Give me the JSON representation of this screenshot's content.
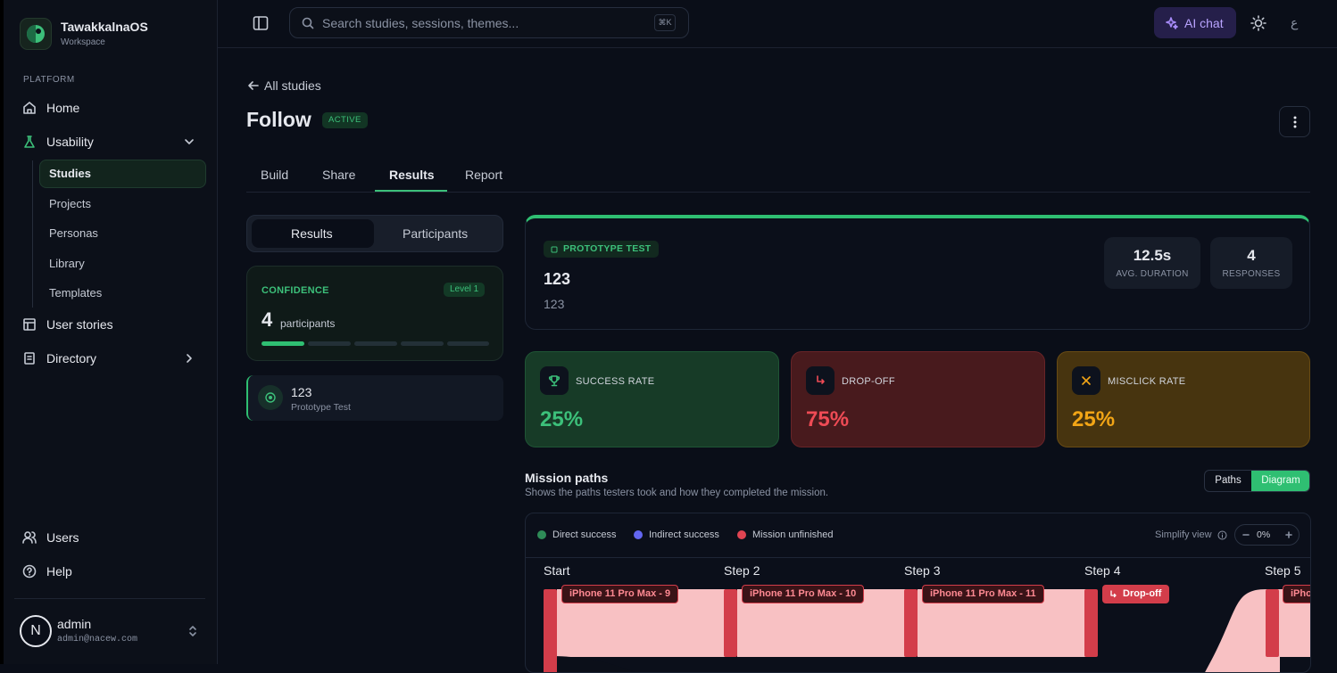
{
  "sidebar": {
    "brand": "TawakkalnaOS",
    "workspace": "Workspace",
    "section": "PLATFORM",
    "nav": [
      "Home",
      "Usability",
      "User stories",
      "Directory"
    ],
    "subnav": [
      "Studies",
      "Projects",
      "Personas",
      "Library",
      "Templates"
    ],
    "footer_nav": [
      "Users",
      "Help"
    ],
    "user": {
      "avatar": "N",
      "name": "admin",
      "email": "admin@nacew.com"
    }
  },
  "topbar": {
    "search_placeholder": "Search studies, sessions, themes...",
    "shortcut": "⌘K",
    "ai_chat": "AI chat",
    "language": "ع"
  },
  "page": {
    "back": "All studies",
    "title": "Follow",
    "status": "ACTIVE",
    "tabs": [
      "Build",
      "Share",
      "Results",
      "Report"
    ]
  },
  "left_panel": {
    "toggle": [
      "Results",
      "Participants"
    ],
    "confidence": {
      "label": "CONFIDENCE",
      "level": "Level 1",
      "count": 4,
      "unit": "participants"
    },
    "task": {
      "name": "123",
      "type": "Prototype Test"
    }
  },
  "summary": {
    "badge": "PROTOTYPE TEST",
    "title": "123",
    "description": "123",
    "stats": [
      {
        "value": "12.5s",
        "label": "AVG. DURATION"
      },
      {
        "value": "4",
        "label": "RESPONSES"
      }
    ]
  },
  "metrics": [
    {
      "label": "SUCCESS RATE",
      "value": "25%"
    },
    {
      "label": "DROP-OFF",
      "value": "75%"
    },
    {
      "label": "MISCLICK RATE",
      "value": "25%"
    }
  ],
  "mission": {
    "title": "Mission paths",
    "subtitle": "Shows the paths testers took and how they completed the mission.",
    "view_toggle": [
      "Paths",
      "Diagram"
    ],
    "legend": [
      "Direct success",
      "Indirect success",
      "Mission unfinished"
    ],
    "simplify": "Simplify view",
    "zoom": "0%",
    "steps": [
      "Start",
      "Step 2",
      "Step 3",
      "Step 4",
      "Step 5"
    ],
    "nodes": [
      "iPhone 11 Pro Max - 9",
      "iPhone 11 Pro Max - 10",
      "iPhone 11 Pro Max - 11",
      "Drop-off",
      "iPho"
    ]
  }
}
